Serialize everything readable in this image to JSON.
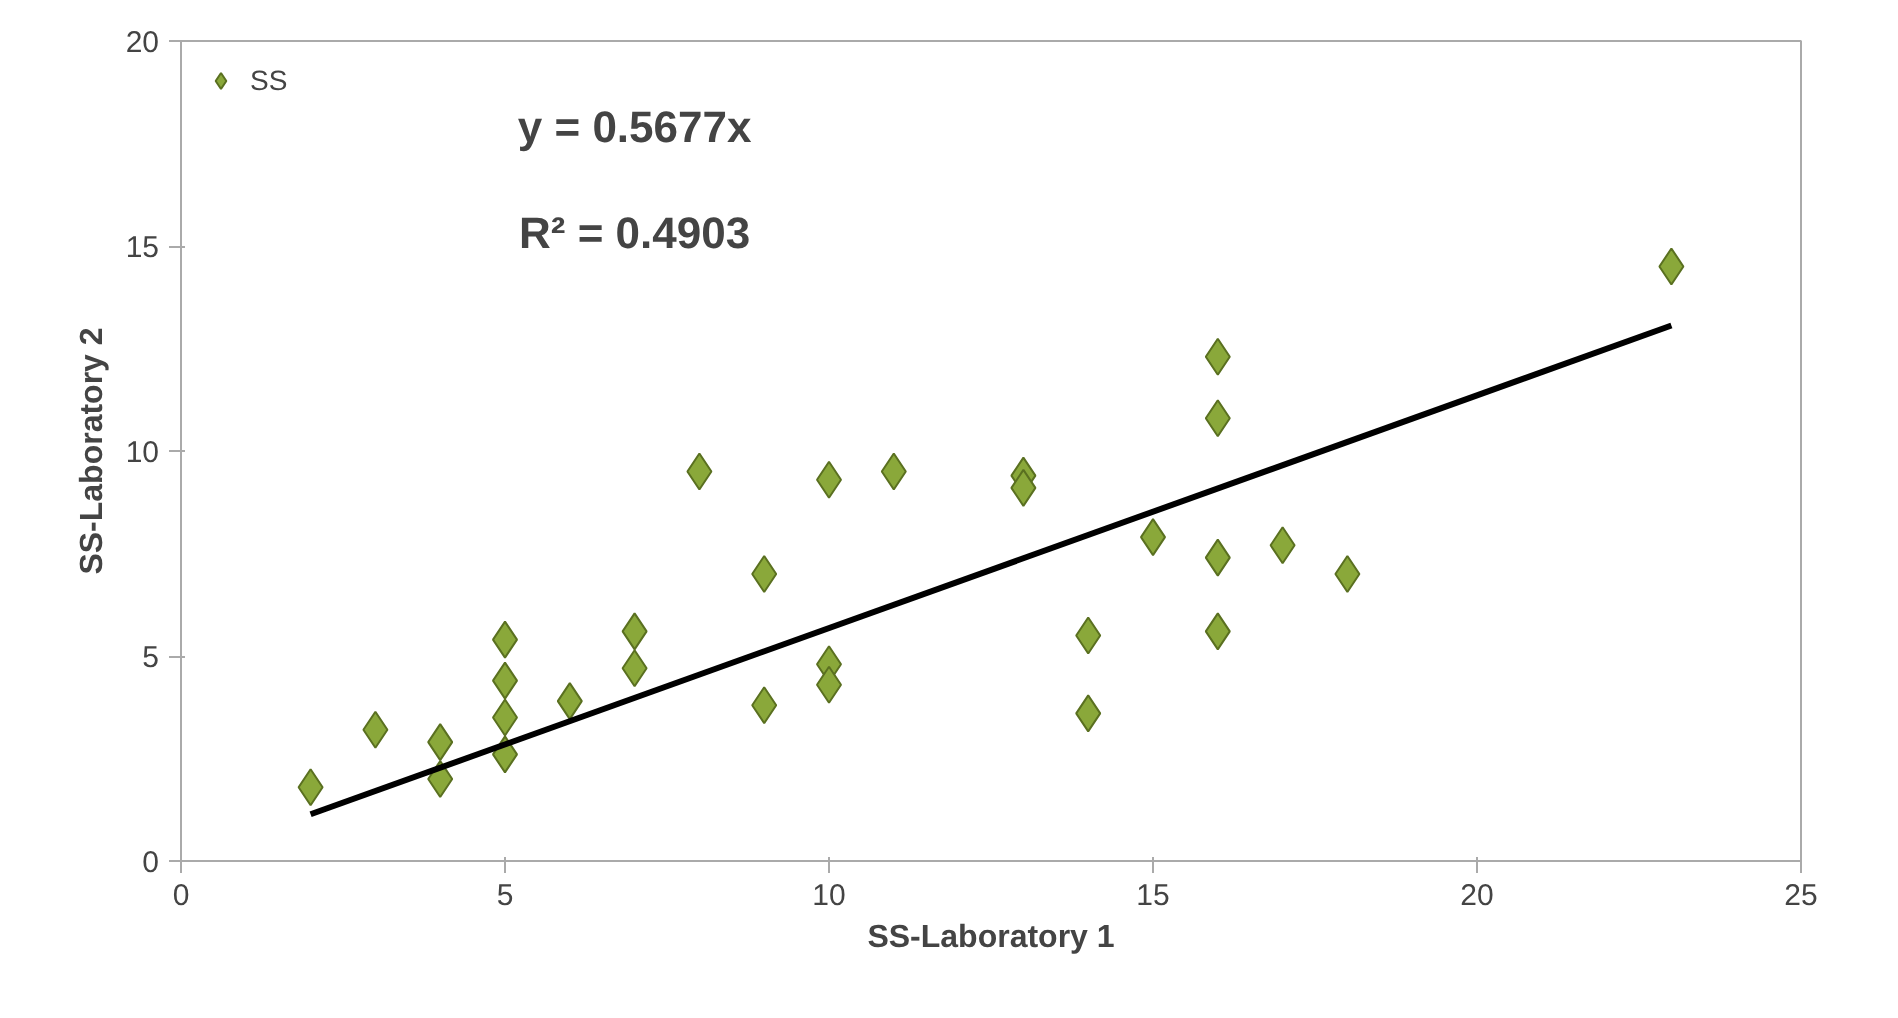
{
  "chart_data": {
    "type": "scatter",
    "xlabel": "SS-Laboratory 1",
    "ylabel": "SS-Laboratory 2",
    "xlim": [
      0,
      25
    ],
    "ylim": [
      0,
      20
    ],
    "xticks": [
      0,
      5,
      10,
      15,
      20,
      25
    ],
    "yticks": [
      0,
      5,
      10,
      15,
      20
    ],
    "grid": false,
    "legend": "top left",
    "marker": "diamond",
    "annotations": [
      "y = 0.5677x",
      "R² = 0.4903"
    ],
    "series": [
      {
        "name": "SS",
        "color": "#8aa83a",
        "x": [
          2,
          3,
          4,
          4,
          5,
          5,
          5,
          5,
          6,
          7,
          7,
          8,
          9,
          9,
          10,
          10,
          10,
          11,
          13,
          13,
          14,
          14,
          15,
          16,
          16,
          16,
          16,
          17,
          18,
          23
        ],
        "values": [
          1.8,
          3.2,
          2.9,
          2.0,
          5.4,
          4.4,
          3.5,
          2.6,
          3.9,
          5.6,
          4.7,
          9.5,
          7.0,
          3.8,
          9.3,
          4.8,
          4.3,
          9.5,
          9.4,
          9.1,
          5.5,
          3.6,
          7.9,
          12.3,
          10.8,
          7.4,
          5.6,
          7.7,
          7.0,
          14.5
        ]
      },
      {
        "type": "line",
        "marker": "none",
        "color": "#000000",
        "x": [
          2,
          23
        ],
        "values": [
          1.14,
          13.06
        ]
      }
    ]
  }
}
